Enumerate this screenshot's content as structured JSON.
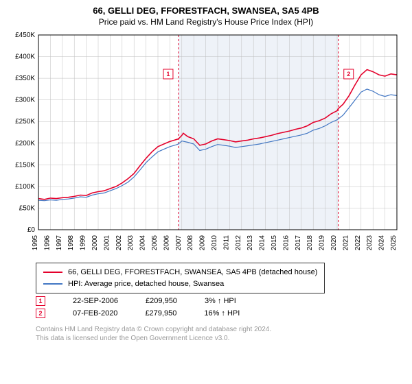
{
  "title": {
    "main": "66, GELLI DEG, FFORESTFACH, SWANSEA, SA5 4PB",
    "sub": "Price paid vs. HM Land Registry's House Price Index (HPI)"
  },
  "chart": {
    "type": "line",
    "plot_bg": "#ffffff",
    "shade_bg": "#eef2f8",
    "grid_color": "#bfbfbf",
    "axis_color": "#000000",
    "y": {
      "min": 0,
      "max": 450000,
      "step": 50000,
      "labels": [
        "£0",
        "£50K",
        "£100K",
        "£150K",
        "£200K",
        "£250K",
        "£300K",
        "£350K",
        "£400K",
        "£450K"
      ]
    },
    "x": {
      "min": 1995,
      "max": 2025,
      "step": 1,
      "labels": [
        "1995",
        "1996",
        "1997",
        "1998",
        "1999",
        "2000",
        "2001",
        "2002",
        "2003",
        "2004",
        "2005",
        "2006",
        "2007",
        "2008",
        "2009",
        "2010",
        "2011",
        "2012",
        "2013",
        "2014",
        "2015",
        "2016",
        "2017",
        "2018",
        "2019",
        "2020",
        "2021",
        "2022",
        "2023",
        "2024",
        "2025"
      ]
    },
    "shade_from": 2006.72,
    "shade_to": 2020.1,
    "series": [
      {
        "name": "property",
        "color": "#e4002b",
        "width": 1.6,
        "points": [
          [
            1995,
            72000
          ],
          [
            1995.5,
            70000
          ],
          [
            1996,
            73000
          ],
          [
            1996.5,
            72000
          ],
          [
            1997,
            74000
          ],
          [
            1997.5,
            75000
          ],
          [
            1998,
            77000
          ],
          [
            1998.5,
            80000
          ],
          [
            1999,
            79000
          ],
          [
            1999.5,
            85000
          ],
          [
            2000,
            88000
          ],
          [
            2000.5,
            90000
          ],
          [
            2001,
            95000
          ],
          [
            2001.5,
            100000
          ],
          [
            2002,
            108000
          ],
          [
            2002.5,
            118000
          ],
          [
            2003,
            130000
          ],
          [
            2003.5,
            148000
          ],
          [
            2004,
            165000
          ],
          [
            2004.5,
            180000
          ],
          [
            2005,
            192000
          ],
          [
            2005.5,
            198000
          ],
          [
            2006,
            204000
          ],
          [
            2006.5,
            208000
          ],
          [
            2006.72,
            209950
          ],
          [
            2007,
            218000
          ],
          [
            2007.12,
            223000
          ],
          [
            2007.5,
            215000
          ],
          [
            2008,
            210000
          ],
          [
            2008.5,
            195000
          ],
          [
            2009,
            198000
          ],
          [
            2009.5,
            205000
          ],
          [
            2010,
            210000
          ],
          [
            2010.5,
            208000
          ],
          [
            2011,
            206000
          ],
          [
            2011.5,
            203000
          ],
          [
            2012,
            205000
          ],
          [
            2012.5,
            207000
          ],
          [
            2013,
            210000
          ],
          [
            2013.5,
            212000
          ],
          [
            2014,
            215000
          ],
          [
            2014.5,
            218000
          ],
          [
            2015,
            222000
          ],
          [
            2015.5,
            225000
          ],
          [
            2016,
            228000
          ],
          [
            2016.5,
            232000
          ],
          [
            2017,
            235000
          ],
          [
            2017.5,
            240000
          ],
          [
            2018,
            248000
          ],
          [
            2018.5,
            252000
          ],
          [
            2019,
            258000
          ],
          [
            2019.5,
            268000
          ],
          [
            2020,
            275000
          ],
          [
            2020.1,
            279950
          ],
          [
            2020.5,
            290000
          ],
          [
            2021,
            310000
          ],
          [
            2021.5,
            335000
          ],
          [
            2022,
            358000
          ],
          [
            2022.5,
            370000
          ],
          [
            2023,
            365000
          ],
          [
            2023.5,
            358000
          ],
          [
            2024,
            355000
          ],
          [
            2024.5,
            360000
          ],
          [
            2025,
            358000
          ]
        ]
      },
      {
        "name": "hpi",
        "color": "#4176c3",
        "width": 1.2,
        "points": [
          [
            1995,
            68000
          ],
          [
            1995.5,
            67000
          ],
          [
            1996,
            69000
          ],
          [
            1996.5,
            68000
          ],
          [
            1997,
            70000
          ],
          [
            1997.5,
            71000
          ],
          [
            1998,
            73000
          ],
          [
            1998.5,
            76000
          ],
          [
            1999,
            75000
          ],
          [
            1999.5,
            80000
          ],
          [
            2000,
            83000
          ],
          [
            2000.5,
            85000
          ],
          [
            2001,
            90000
          ],
          [
            2001.5,
            95000
          ],
          [
            2002,
            102000
          ],
          [
            2002.5,
            110000
          ],
          [
            2003,
            122000
          ],
          [
            2003.5,
            138000
          ],
          [
            2004,
            155000
          ],
          [
            2004.5,
            168000
          ],
          [
            2005,
            180000
          ],
          [
            2005.5,
            186000
          ],
          [
            2006,
            192000
          ],
          [
            2006.5,
            196000
          ],
          [
            2006.72,
            198000
          ],
          [
            2007,
            205000
          ],
          [
            2007.5,
            202000
          ],
          [
            2008,
            198000
          ],
          [
            2008.5,
            183000
          ],
          [
            2009,
            186000
          ],
          [
            2009.5,
            192000
          ],
          [
            2010,
            197000
          ],
          [
            2010.5,
            195000
          ],
          [
            2011,
            193000
          ],
          [
            2011.5,
            190000
          ],
          [
            2012,
            192000
          ],
          [
            2012.5,
            194000
          ],
          [
            2013,
            196000
          ],
          [
            2013.5,
            198000
          ],
          [
            2014,
            201000
          ],
          [
            2014.5,
            204000
          ],
          [
            2015,
            207000
          ],
          [
            2015.5,
            210000
          ],
          [
            2016,
            213000
          ],
          [
            2016.5,
            216000
          ],
          [
            2017,
            219000
          ],
          [
            2017.5,
            223000
          ],
          [
            2018,
            230000
          ],
          [
            2018.5,
            234000
          ],
          [
            2019,
            240000
          ],
          [
            2019.5,
            248000
          ],
          [
            2020,
            254000
          ],
          [
            2020.1,
            256000
          ],
          [
            2020.5,
            265000
          ],
          [
            2021,
            282000
          ],
          [
            2021.5,
            300000
          ],
          [
            2022,
            318000
          ],
          [
            2022.5,
            325000
          ],
          [
            2023,
            320000
          ],
          [
            2023.5,
            312000
          ],
          [
            2024,
            308000
          ],
          [
            2024.5,
            312000
          ],
          [
            2025,
            310000
          ]
        ]
      }
    ],
    "markers": [
      {
        "id": "1",
        "x": 2006.72,
        "y": 209950,
        "color": "#e4002b"
      },
      {
        "id": "2",
        "x": 2020.1,
        "y": 279950,
        "color": "#e4002b"
      }
    ]
  },
  "legend": {
    "rows": [
      {
        "color": "#e4002b",
        "label": "66, GELLI DEG, FFORESTFACH, SWANSEA, SA5 4PB (detached house)"
      },
      {
        "color": "#4176c3",
        "label": "HPI: Average price, detached house, Swansea"
      }
    ]
  },
  "sales": [
    {
      "marker": "1",
      "marker_color": "#e4002b",
      "date": "22-SEP-2006",
      "price": "£209,950",
      "hpi_delta": "3% ↑ HPI"
    },
    {
      "marker": "2",
      "marker_color": "#e4002b",
      "date": "07-FEB-2020",
      "price": "£279,950",
      "hpi_delta": "16% ↑ HPI"
    }
  ],
  "footer": {
    "line1": "Contains HM Land Registry data © Crown copyright and database right 2024.",
    "line2": "This data is licensed under the Open Government Licence v3.0."
  }
}
